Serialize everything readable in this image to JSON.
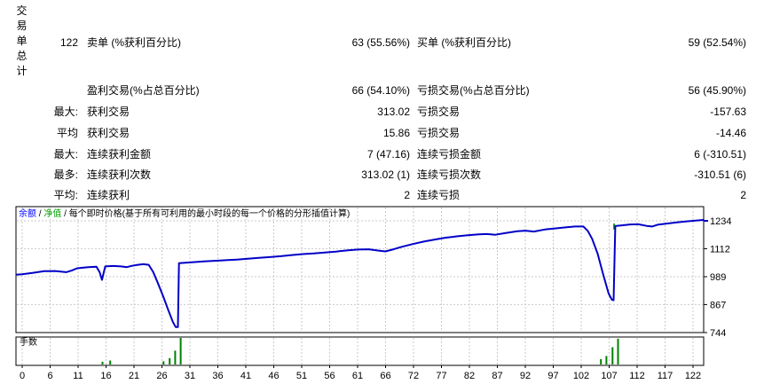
{
  "table": {
    "vertical_title": "交易单总计",
    "rows": [
      [
        "122",
        "卖单 (%获利百分比)",
        "63 (55.56%)",
        "买单 (%获利百分比)",
        "59 (52.54%)"
      ],
      [
        "",
        "盈利交易(%占总百分比)",
        "66 (54.10%)",
        "亏损交易(%占总百分比)",
        "56 (45.90%)"
      ],
      [
        "最大:",
        "获利交易",
        "313.02",
        "亏损交易",
        "-157.63"
      ],
      [
        "平均",
        "获利交易",
        "15.86",
        "亏损交易",
        "-14.46"
      ],
      [
        "最大:",
        "连续获利金额",
        "7 (47.16)",
        "连续亏损金额",
        "6 (-310.51)"
      ],
      [
        "最多:",
        "连续获利次数",
        "313.02 (1)",
        "连续亏损次数",
        "-310.51 (6)"
      ],
      [
        "平均:",
        "连续获利",
        "2",
        "连续亏损",
        "2"
      ]
    ]
  },
  "chart_data": {
    "type": "line",
    "legend": {
      "separator": " / ",
      "items": [
        {
          "label": "余额",
          "color": "#0000ff"
        },
        {
          "label": "净值",
          "color": "#00a000"
        },
        {
          "label": "每个即时价格(基于所有可利用的最小时段的每一个价格的分形插值计算)",
          "color": "#000000"
        }
      ]
    },
    "ylabel_right_ticks": [
      1234,
      1112,
      989,
      867,
      744
    ],
    "x_tick_labels": [
      0,
      6,
      11,
      16,
      21,
      26,
      31,
      36,
      41,
      46,
      51,
      56,
      61,
      66,
      72,
      77,
      82,
      87,
      92,
      97,
      102,
      107,
      112,
      117,
      122
    ],
    "ylim": [
      744,
      1234
    ],
    "xlim": [
      0,
      123.8
    ],
    "line_color": "#0000c8",
    "balance_series": [
      [
        -1.1,
        998
      ],
      [
        0,
        1000
      ],
      [
        2,
        1006
      ],
      [
        4,
        1013
      ],
      [
        6,
        1014
      ],
      [
        7,
        1011
      ],
      [
        8,
        1009
      ],
      [
        9,
        1016
      ],
      [
        10,
        1026
      ],
      [
        12,
        1031
      ],
      [
        13.5,
        1033
      ],
      [
        14.1,
        1008
      ],
      [
        14.5,
        975
      ],
      [
        15.1,
        1034
      ],
      [
        16.5,
        1036
      ],
      [
        18,
        1034
      ],
      [
        19,
        1031
      ],
      [
        20,
        1037
      ],
      [
        21,
        1041
      ],
      [
        22,
        1044
      ],
      [
        23,
        1041
      ],
      [
        23.8,
        1010
      ],
      [
        24.6,
        965
      ],
      [
        25.6,
        905
      ],
      [
        26.6,
        840
      ],
      [
        27.4,
        790
      ],
      [
        27.9,
        768
      ],
      [
        28.3,
        768
      ],
      [
        28.5,
        1048
      ],
      [
        30,
        1051
      ],
      [
        33,
        1056
      ],
      [
        36,
        1060
      ],
      [
        39,
        1064
      ],
      [
        41,
        1068
      ],
      [
        43,
        1072
      ],
      [
        45,
        1075
      ],
      [
        47,
        1079
      ],
      [
        49,
        1084
      ],
      [
        51,
        1088
      ],
      [
        53,
        1091
      ],
      [
        55,
        1095
      ],
      [
        57,
        1099
      ],
      [
        59,
        1104
      ],
      [
        61,
        1108
      ],
      [
        63,
        1109
      ],
      [
        64.5,
        1104
      ],
      [
        66,
        1100
      ],
      [
        67.5,
        1109
      ],
      [
        69,
        1120
      ],
      [
        71,
        1132
      ],
      [
        73,
        1143
      ],
      [
        75,
        1152
      ],
      [
        77,
        1160
      ],
      [
        79,
        1166
      ],
      [
        81,
        1171
      ],
      [
        83,
        1175
      ],
      [
        84.5,
        1176
      ],
      [
        86,
        1173
      ],
      [
        88,
        1181
      ],
      [
        90,
        1188
      ],
      [
        91.5,
        1191
      ],
      [
        93,
        1187
      ],
      [
        95,
        1196
      ],
      [
        97,
        1201
      ],
      [
        99,
        1206
      ],
      [
        100.5,
        1209
      ],
      [
        102,
        1209
      ],
      [
        102.8,
        1190
      ],
      [
        103.6,
        1155
      ],
      [
        104.6,
        1090
      ],
      [
        105.6,
        1000
      ],
      [
        106.6,
        915
      ],
      [
        107.2,
        888
      ],
      [
        107.5,
        886
      ],
      [
        107.8,
        1211
      ],
      [
        109,
        1214
      ],
      [
        110.5,
        1218
      ],
      [
        112,
        1219
      ],
      [
        113.5,
        1212
      ],
      [
        114.5,
        1209
      ],
      [
        115.5,
        1217
      ],
      [
        117,
        1221
      ],
      [
        119,
        1227
      ],
      [
        121,
        1232
      ],
      [
        123.8,
        1238
      ]
    ],
    "final_balance_tick_value": 1234,
    "equity_marker": {
      "trade": 107.6,
      "value_top": 1222,
      "value_bottom": 1196,
      "color": "#00a000"
    },
    "lots_panel": {
      "label": "手数",
      "bar_color": "#008000",
      "bars": [
        [
          14.6,
          0.1
        ],
        [
          16.0,
          0.15
        ],
        [
          25.7,
          0.12
        ],
        [
          26.8,
          0.24
        ],
        [
          27.8,
          0.52
        ],
        [
          28.8,
          1.0
        ],
        [
          105.2,
          0.2
        ],
        [
          106.2,
          0.32
        ],
        [
          107.3,
          0.65
        ],
        [
          108.3,
          0.97
        ]
      ]
    }
  }
}
